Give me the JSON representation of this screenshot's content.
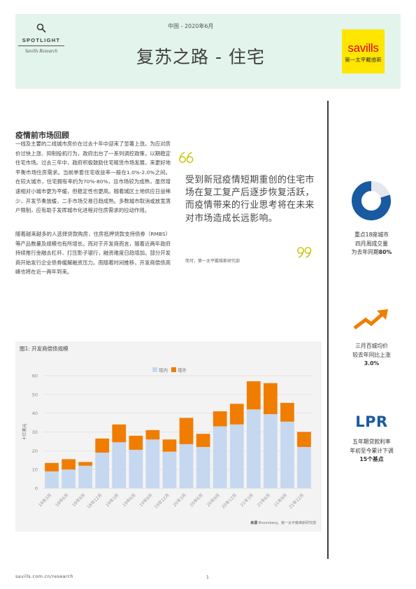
{
  "header": {
    "spotlight_word": "SPOTLIGHT",
    "spotlight_sub": "Savills Research",
    "pretitle": "中国 - 2020年6月",
    "title": "复苏之路 - 住宅",
    "logo_brand": "savills",
    "logo_cn": "第一太平戴维斯",
    "logo_color": "#ffe600",
    "logo_text_color": "#e2001a",
    "background_color": "#e3f4ec"
  },
  "main": {
    "section_title": "疫情前市场回顾",
    "paragraphs": [
      "一线及主要的二线城市房价在过去十年中迎来了显著上涨。为应对房价过快上涨、抑制投机行为，政府出台了一系列调控政策，以期稳定住宅市场。过去三年中，政府积极鼓励住宅租赁市场发展，来更好地平衡市场住房需求。当前单套住宅收益率一般在1.0%-2.0%之间。在较大城市，住宅拥有率约为70%-80%，且市场较为成熟，虽然增速相对小城市更为平缓，但稳定性也更高。随着城区土地供应日益稀少，开发节奏放缓，二手市场交易日趋成熟。多数城市取消或放宽落户限制，应有助于发挥城市化进程对住房需求的拉动作用。",
      "随着越来越多的人选择贷款购房，住房抵押贷款支持债券（RMBS）等产品数量及规模也有所增长。而对于开发商而言，随着近两年政府持续推行金融去杠杆、打压影子银行，融资难度日趋增加。部分开发商开始发行企业债券缓解融资压力。而随着时间推移，开发商偿债高峰也将在近一两年到来。"
    ]
  },
  "quote": {
    "text": "受到新冠疫情短期重创的住宅市场在复工复产后逐步恢复活跃，而疫情带来的行业思考将在未来对市场造成长远影响。",
    "source": "简可，第一太平戴维斯研究部"
  },
  "sidebar": {
    "stat1": {
      "line1": "重点18座城市",
      "line2": "四月周成交量",
      "line3_prefix": "为去年同期",
      "line3_value": "80%",
      "donut_fraction": 0.8
    },
    "stat2": {
      "line1": "三月百城均价",
      "line2": "较去年同比上涨",
      "line3": "3.0%"
    },
    "stat3": {
      "big": "LPR",
      "line1": "五年期贷款利率",
      "line2": "年初至今累计下调",
      "line3": "15个基点"
    },
    "accent_blue": "#1a5aa0",
    "accent_orange": "#f07d00"
  },
  "chart": {
    "title": "图1: 开发商偿债规模",
    "source_label": "来源",
    "source_text": "Bloomberg，第一太平戴维斯研究部"
  },
  "chart_data": {
    "type": "bar",
    "stacked": true,
    "ylabel": "十亿美元",
    "ylim": [
      0,
      60
    ],
    "yticks": [
      0,
      10,
      20,
      30,
      40,
      50,
      60
    ],
    "grid": true,
    "legend_position": "top",
    "categories": [
      "18年3月",
      "18年6月",
      "18年9月",
      "18年12月",
      "19年3月",
      "19年6月",
      "19年9月",
      "19年12月",
      "20年3月",
      "20年6月",
      "20年9月",
      "20年12月",
      "21年3月",
      "21年6月",
      "21年9月",
      "21年12月"
    ],
    "series": [
      {
        "name": "境内",
        "color": "#c6d7f0",
        "values": [
          9,
          10,
          12,
          19,
          24.5,
          20.5,
          26,
          19.5,
          23.5,
          22,
          33,
          34,
          42,
          39.5,
          35.5,
          22
        ]
      },
      {
        "name": "境外",
        "color": "#f07d00",
        "values": [
          4.5,
          5.5,
          2,
          7.5,
          9.5,
          7.5,
          5,
          6.5,
          14,
          7,
          8,
          11,
          15,
          16.5,
          10,
          8
        ]
      }
    ]
  },
  "footer": {
    "url": "savills.com.cn/research",
    "page": "1"
  }
}
